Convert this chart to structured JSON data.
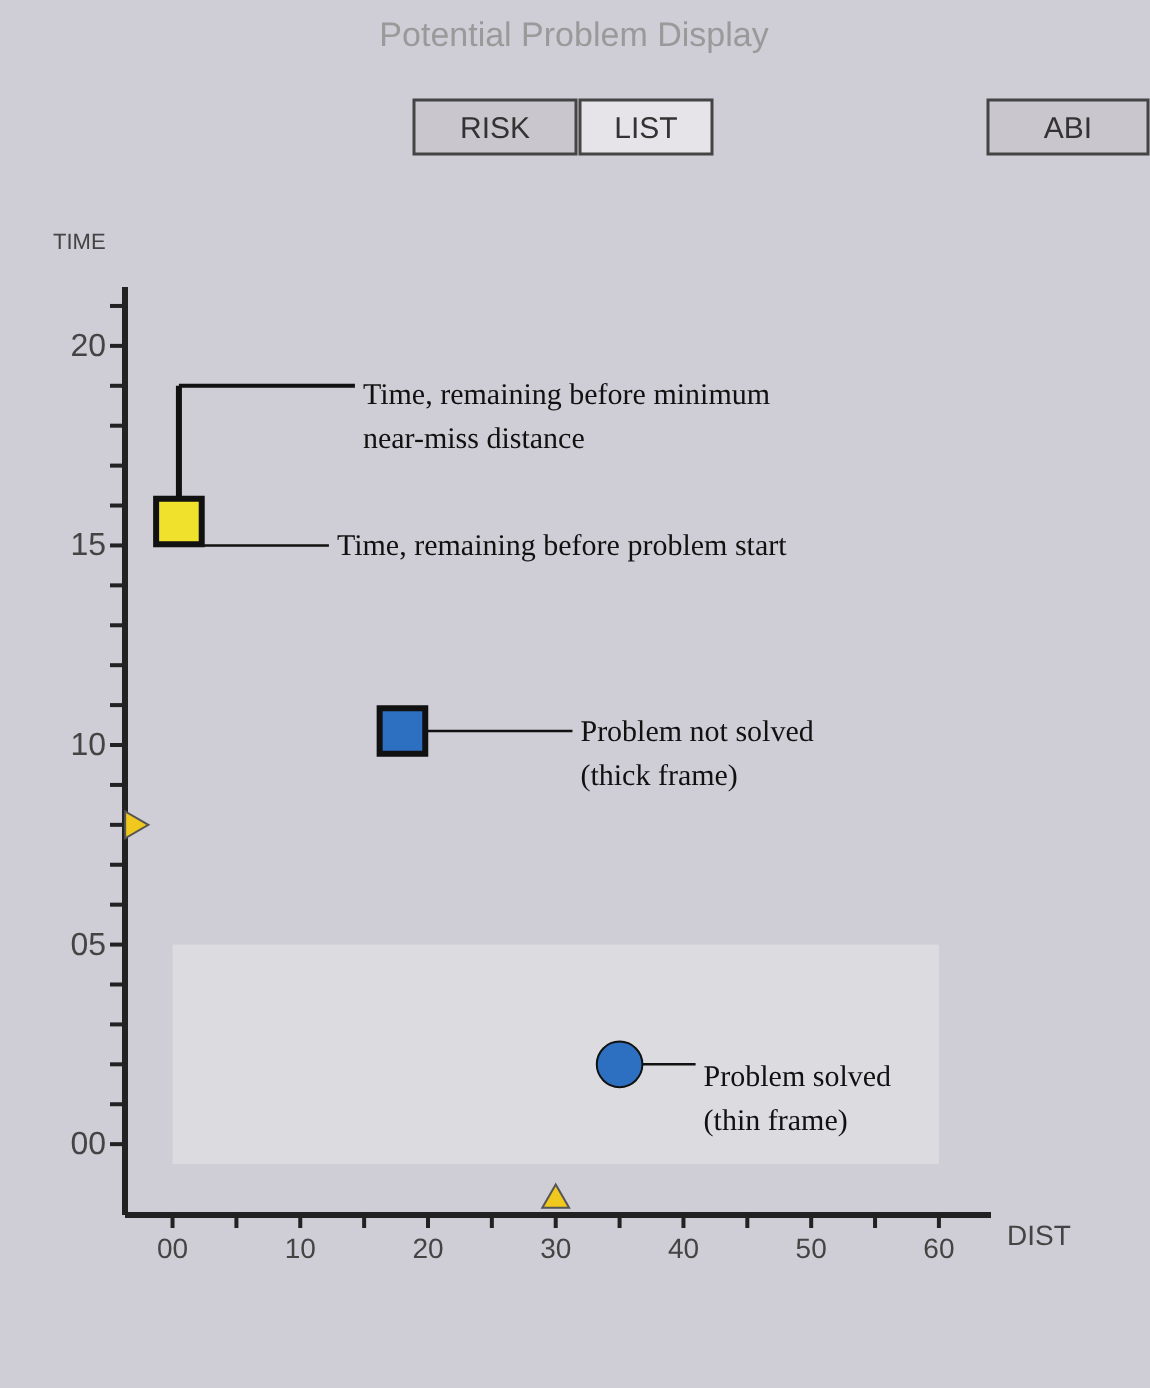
{
  "chart_data": {
    "type": "scatter",
    "title": "Potential Problem Display",
    "xlabel": "DIST",
    "ylabel": "TIME",
    "xlim": [
      -3.8,
      64
    ],
    "ylim": [
      -1.75,
      21.5
    ],
    "xticks": [
      {
        "value": 0,
        "label": "00"
      },
      {
        "value": 5,
        "label": null
      },
      10,
      {
        "value": 15,
        "label": null
      },
      20,
      {
        "value": 25,
        "label": null
      },
      30,
      {
        "value": 35,
        "label": null
      },
      40,
      {
        "value": 45,
        "label": null
      },
      50,
      {
        "value": 55,
        "label": null
      },
      60
    ],
    "yticks": [
      {
        "value": 0,
        "label": "00"
      },
      {
        "value": 1,
        "label": null
      },
      {
        "value": 2,
        "label": null
      },
      {
        "value": 3,
        "label": null
      },
      {
        "value": 4,
        "label": null
      },
      {
        "value": 5,
        "label": "05"
      },
      {
        "value": 6,
        "label": null
      },
      {
        "value": 7,
        "label": null
      },
      {
        "value": 8,
        "label": null
      },
      {
        "value": 9,
        "label": null
      },
      10,
      {
        "value": 11,
        "label": null
      },
      {
        "value": 12,
        "label": null
      },
      {
        "value": 13,
        "label": null
      },
      {
        "value": 14,
        "label": null
      },
      15,
      {
        "value": 16,
        "label": null
      },
      {
        "value": 17,
        "label": null
      },
      {
        "value": 18,
        "label": null
      },
      {
        "value": 19,
        "label": null
      },
      20,
      {
        "value": 21,
        "label": null
      }
    ],
    "grid": false,
    "bands": [
      {
        "axis": "y",
        "from": -0.5,
        "to": 5,
        "color": "#dcdbe0"
      }
    ],
    "series": [
      {
        "x": [
          0.5
        ],
        "values": [
          15.6
        ],
        "color": "#f0e12c",
        "marker": "square",
        "errors": [
          [
            15.6,
            19
          ]
        ]
      },
      {
        "x": [
          18
        ],
        "values": [
          10.35
        ],
        "color": "#2d6fc0",
        "marker": "square"
      },
      {
        "x": [
          35
        ],
        "values": [
          2
        ],
        "color": "#2d6fc0",
        "marker": "circle"
      },
      {
        "x": [
          -2.8
        ],
        "values": [
          8
        ],
        "color": "#f0c81e",
        "marker": "triangle"
      },
      {
        "x": [
          30
        ],
        "values": [
          -1.3
        ],
        "color": "#f0c81e",
        "marker": "triangle"
      }
    ],
    "annotations": [
      {
        "text": "Time, remaining before minimum\nnear-miss distance",
        "x": 0.5,
        "y": 19
      },
      {
        "text": "Time, remaining before problem start",
        "x": 0.5,
        "y": 15
      },
      {
        "text": "Problem not solved\n(thick frame)",
        "x": 18,
        "y": 10.35
      },
      {
        "text": "Problem solved\n(thin frame)",
        "x": 35,
        "y": 2
      },
      "RISK",
      "LIST",
      "ABI"
    ]
  }
}
